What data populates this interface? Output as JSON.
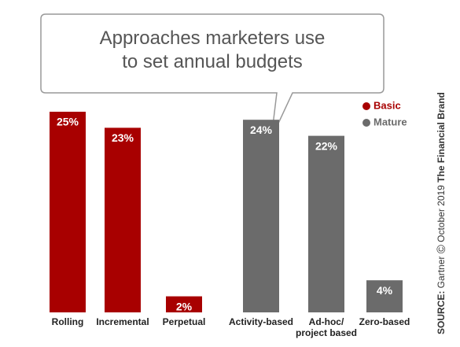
{
  "chart_data": {
    "type": "bar",
    "title": "Approaches marketers use\nto set annual budgets",
    "categories": [
      "Rolling",
      "Incremental",
      "Perpetual",
      "Activity-based",
      "Ad-hoc/\nproject based",
      "Zero-based"
    ],
    "series": [
      {
        "name": "Basic",
        "color": "#a80000",
        "values": [
          25,
          23,
          2,
          null,
          null,
          null
        ],
        "value_labels": [
          "25%",
          "23%",
          "2%",
          null,
          null,
          null
        ]
      },
      {
        "name": "Mature",
        "color": "#6b6b6b",
        "values": [
          null,
          null,
          null,
          24,
          22,
          4
        ],
        "value_labels": [
          null,
          null,
          null,
          "24%",
          "22%",
          "4%"
        ]
      }
    ],
    "legend": "top-right",
    "source_label": "SOURCE:",
    "source": "Gartner",
    "copyright": "©",
    "date": "October 2019",
    "brand": "The Financial Brand"
  }
}
